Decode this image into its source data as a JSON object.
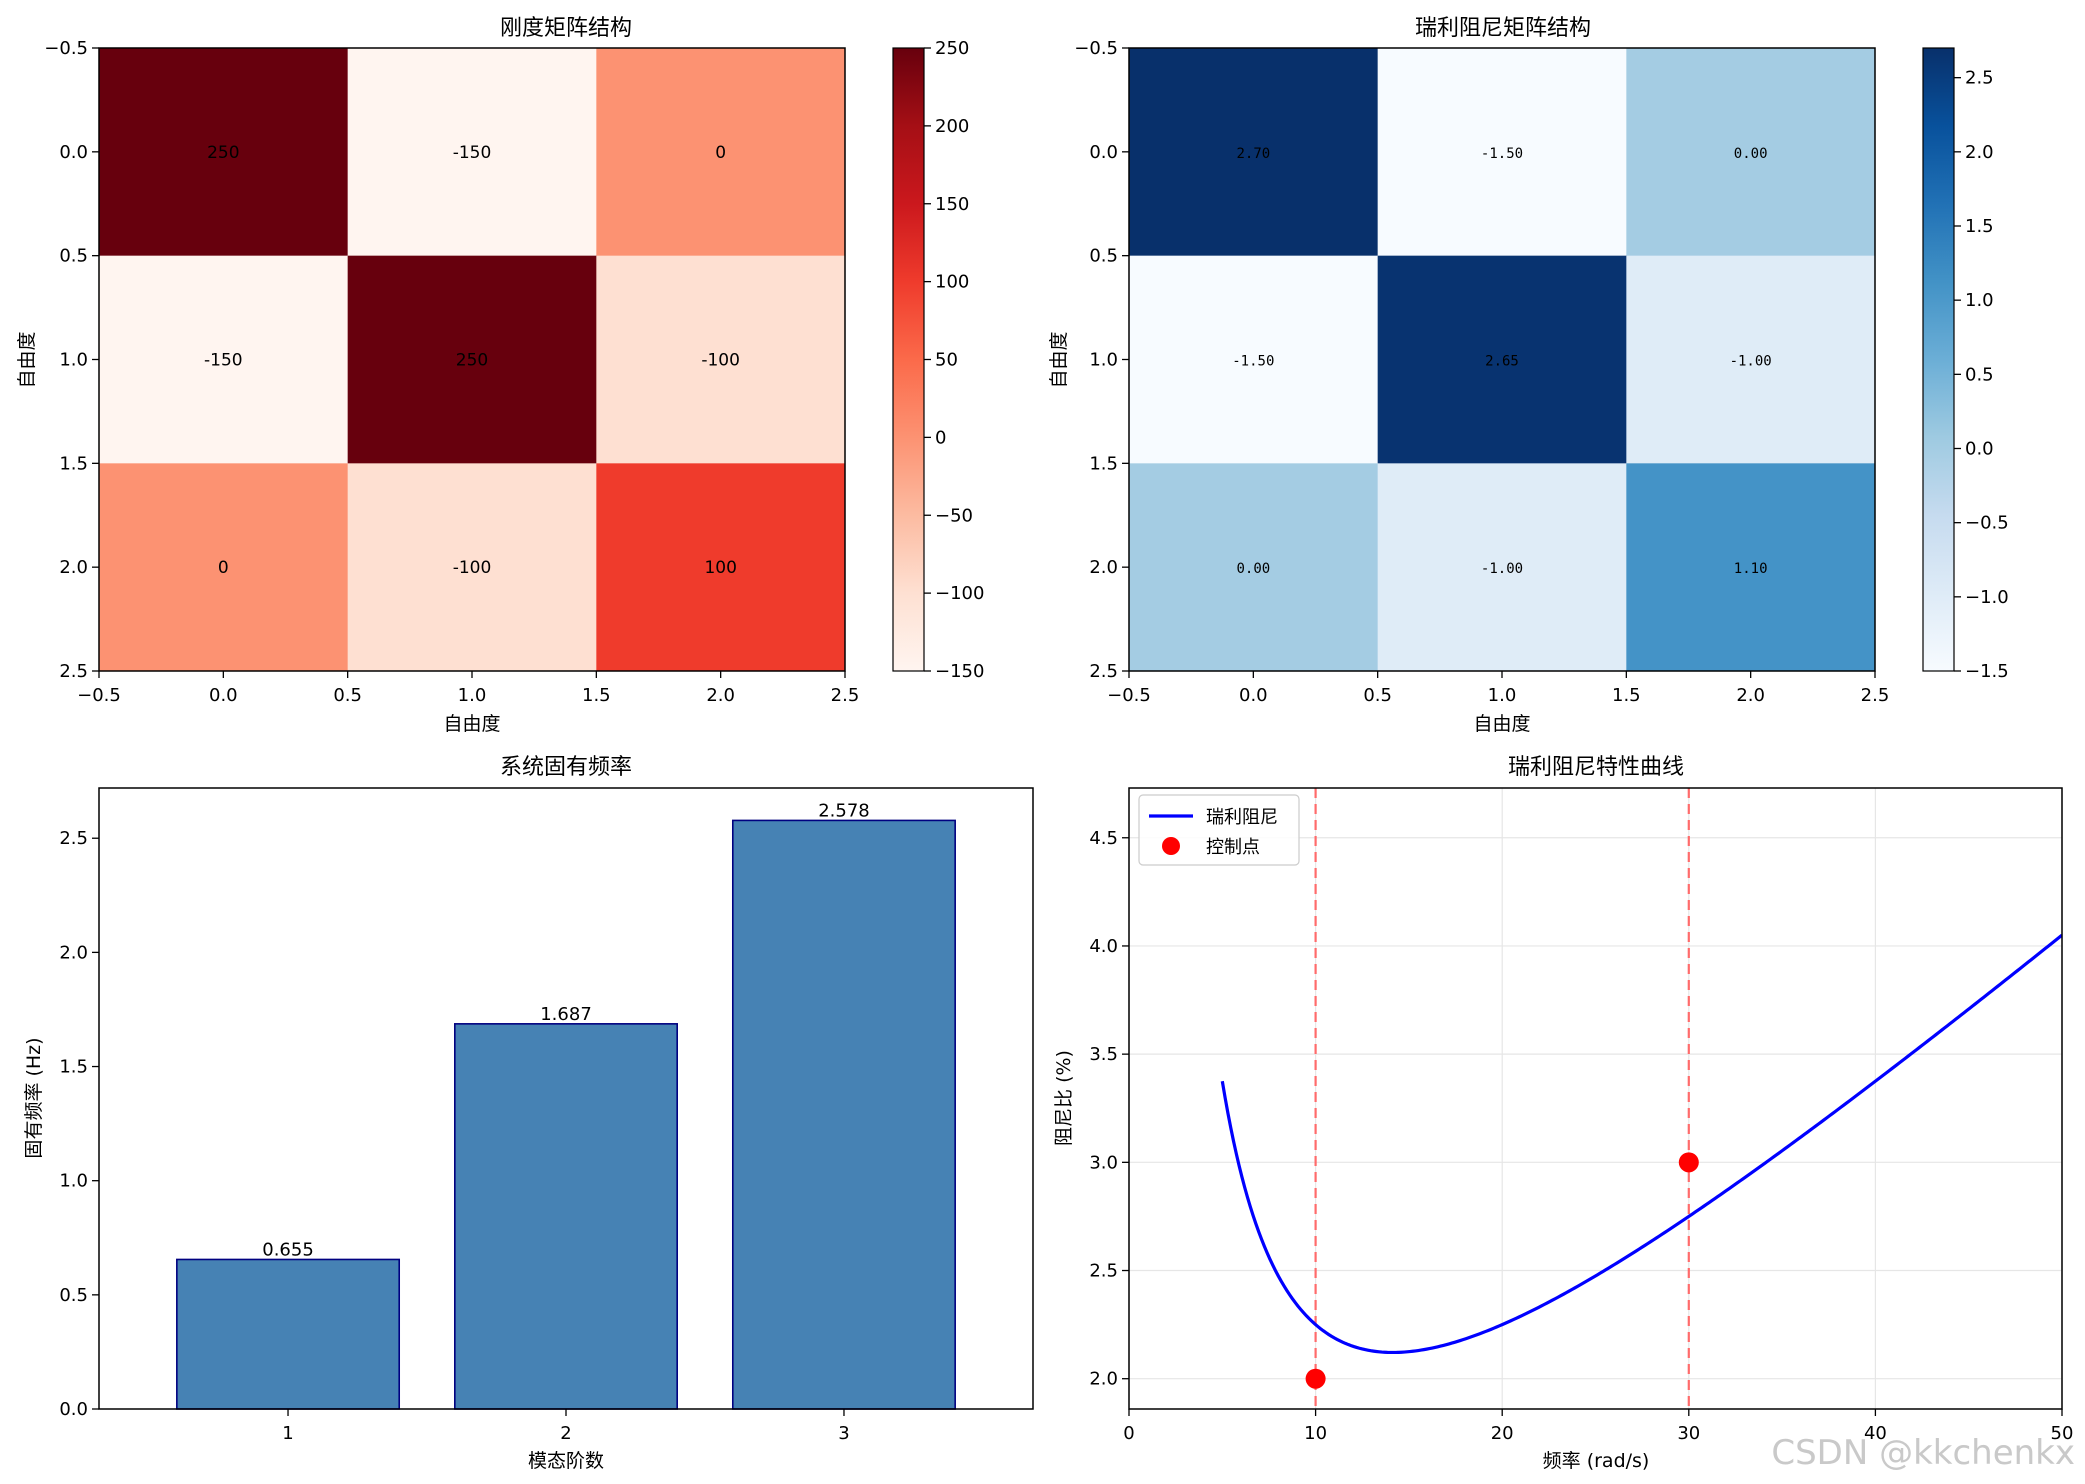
{
  "watermark": "CSDN @kkchenkx",
  "chart_data": [
    {
      "type": "heatmap",
      "title": "刚度矩阵结构",
      "xlabel": "自由度",
      "ylabel": "自由度",
      "colormap": "Reds",
      "values": [
        [
          250,
          -150,
          0
        ],
        [
          -150,
          250,
          -100
        ],
        [
          0,
          -100,
          100
        ]
      ],
      "cell_labels": [
        [
          "250",
          "-150",
          "0"
        ],
        [
          "-150",
          "250",
          "-100"
        ],
        [
          "0",
          "-100",
          "100"
        ]
      ],
      "x_ticks": [
        "−0.5",
        "0.0",
        "0.5",
        "1.0",
        "1.5",
        "2.0",
        "2.5"
      ],
      "y_ticks": [
        "−0.5",
        "0.0",
        "0.5",
        "1.0",
        "1.5",
        "2.0",
        "2.5"
      ],
      "colorbar": {
        "min": -150,
        "max": 250,
        "ticks": [
          250,
          200,
          150,
          100,
          50,
          0,
          -50,
          -100,
          -150
        ],
        "tick_labels": [
          "250",
          "200",
          "150",
          "100",
          "50",
          "0",
          "−50",
          "−100",
          "−150"
        ]
      }
    },
    {
      "type": "heatmap",
      "title": "瑞利阻尼矩阵结构",
      "xlabel": "自由度",
      "ylabel": "自由度",
      "colormap": "Blues",
      "values": [
        [
          2.7,
          -1.5,
          0.0
        ],
        [
          -1.5,
          2.65,
          -1.0
        ],
        [
          0.0,
          -1.0,
          1.1
        ]
      ],
      "cell_labels": [
        [
          "2.70",
          "-1.50",
          "0.00"
        ],
        [
          "-1.50",
          "2.65",
          "-1.00"
        ],
        [
          "0.00",
          "-1.00",
          "1.10"
        ]
      ],
      "x_ticks": [
        "−0.5",
        "0.0",
        "0.5",
        "1.0",
        "1.5",
        "2.0",
        "2.5"
      ],
      "y_ticks": [
        "−0.5",
        "0.0",
        "0.5",
        "1.0",
        "1.5",
        "2.0",
        "2.5"
      ],
      "colorbar": {
        "min": -1.5,
        "max": 2.7,
        "ticks": [
          2.5,
          2.0,
          1.5,
          1.0,
          0.5,
          0.0,
          -0.5,
          -1.0,
          -1.5
        ],
        "tick_labels": [
          "2.5",
          "2.0",
          "1.5",
          "1.0",
          "0.5",
          "0.0",
          "−0.5",
          "−1.0",
          "−1.5"
        ]
      }
    },
    {
      "type": "bar",
      "title": "系统固有频率",
      "xlabel": "模态阶数",
      "ylabel": "固有频率 (Hz)",
      "categories": [
        "1",
        "2",
        "3"
      ],
      "values": [
        0.655,
        1.687,
        2.578
      ],
      "value_labels": [
        "0.655",
        "1.687",
        "2.578"
      ],
      "ylim": [
        0,
        2.72
      ],
      "y_ticks": [
        0.0,
        0.5,
        1.0,
        1.5,
        2.0,
        2.5
      ],
      "y_tick_labels": [
        "0.0",
        "0.5",
        "1.0",
        "1.5",
        "2.0",
        "2.5"
      ],
      "bar_color": "#4682b4",
      "edge_color": "#000080"
    },
    {
      "type": "line",
      "title": "瑞利阻尼特性曲线",
      "xlabel": "频率 (rad/s)",
      "ylabel": "阻尼比 (%)",
      "xlim": [
        0,
        50
      ],
      "ylim": [
        1.86,
        4.73
      ],
      "x_ticks": [
        0,
        10,
        20,
        30,
        40,
        50
      ],
      "x_tick_labels": [
        "0",
        "10",
        "20",
        "30",
        "40",
        "50"
      ],
      "y_ticks": [
        2.0,
        2.5,
        3.0,
        3.5,
        4.0,
        4.5
      ],
      "y_tick_labels": [
        "2.0",
        "2.5",
        "3.0",
        "3.5",
        "4.0",
        "4.5"
      ],
      "grid": true,
      "series": [
        {
          "name": "瑞利阻尼",
          "color": "#0000ff",
          "alpha": 0.3,
          "beta": 0.0015,
          "x_start": 5,
          "x_end": 50
        },
        {
          "name": "控制点",
          "color": "#ff0000",
          "points": [
            [
              10,
              2.0
            ],
            [
              30,
              3.0
            ]
          ]
        }
      ],
      "vlines": [
        10,
        30
      ],
      "vline_color": "#ff6b6b",
      "legend_position": "upper-left"
    }
  ]
}
